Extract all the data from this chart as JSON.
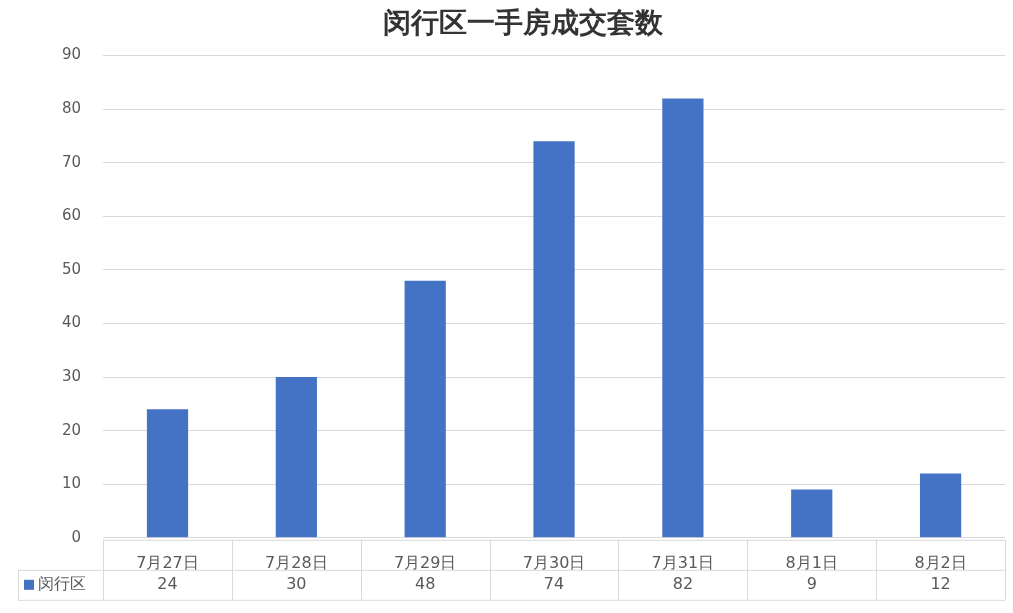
{
  "chart_data": {
    "type": "bar",
    "title": "闵行区一手房成交套数",
    "categories": [
      "7月27日",
      "7月28日",
      "7月29日",
      "7月30日",
      "7月31日",
      "8月1日",
      "8月2日"
    ],
    "series": [
      {
        "name": "闵行区",
        "color": "#4472c4",
        "values": [
          24,
          30,
          48,
          74,
          82,
          9,
          12
        ]
      }
    ],
    "ylim": [
      0,
      90
    ],
    "yticks": [
      0,
      10,
      20,
      30,
      40,
      50,
      60,
      70,
      80,
      90
    ],
    "grid": "y",
    "legend": "bottom",
    "data_labels": true
  }
}
